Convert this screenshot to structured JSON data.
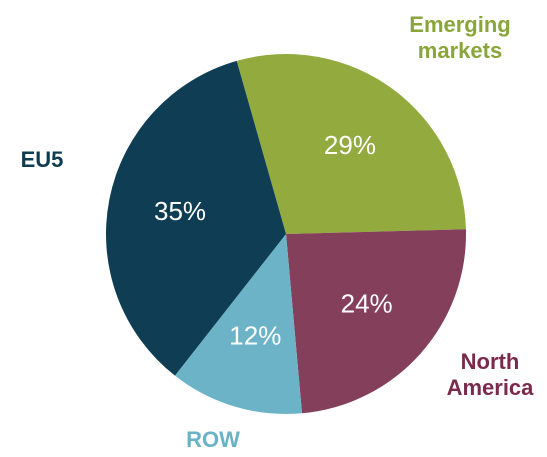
{
  "chart_data": {
    "type": "pie",
    "categories": [
      "Emerging markets",
      "North America",
      "ROW",
      "EU5"
    ],
    "values": [
      29,
      24,
      12,
      35
    ],
    "value_labels": [
      "29%",
      "24%",
      "12%",
      "35%"
    ],
    "colors": [
      "#93aa3f",
      "#84405a",
      "#6db3c7",
      "#0f3e54"
    ],
    "label_colors": [
      "#8aa63a",
      "#7a2b4c",
      "#6ab3c6",
      "#0e3d52"
    ]
  }
}
